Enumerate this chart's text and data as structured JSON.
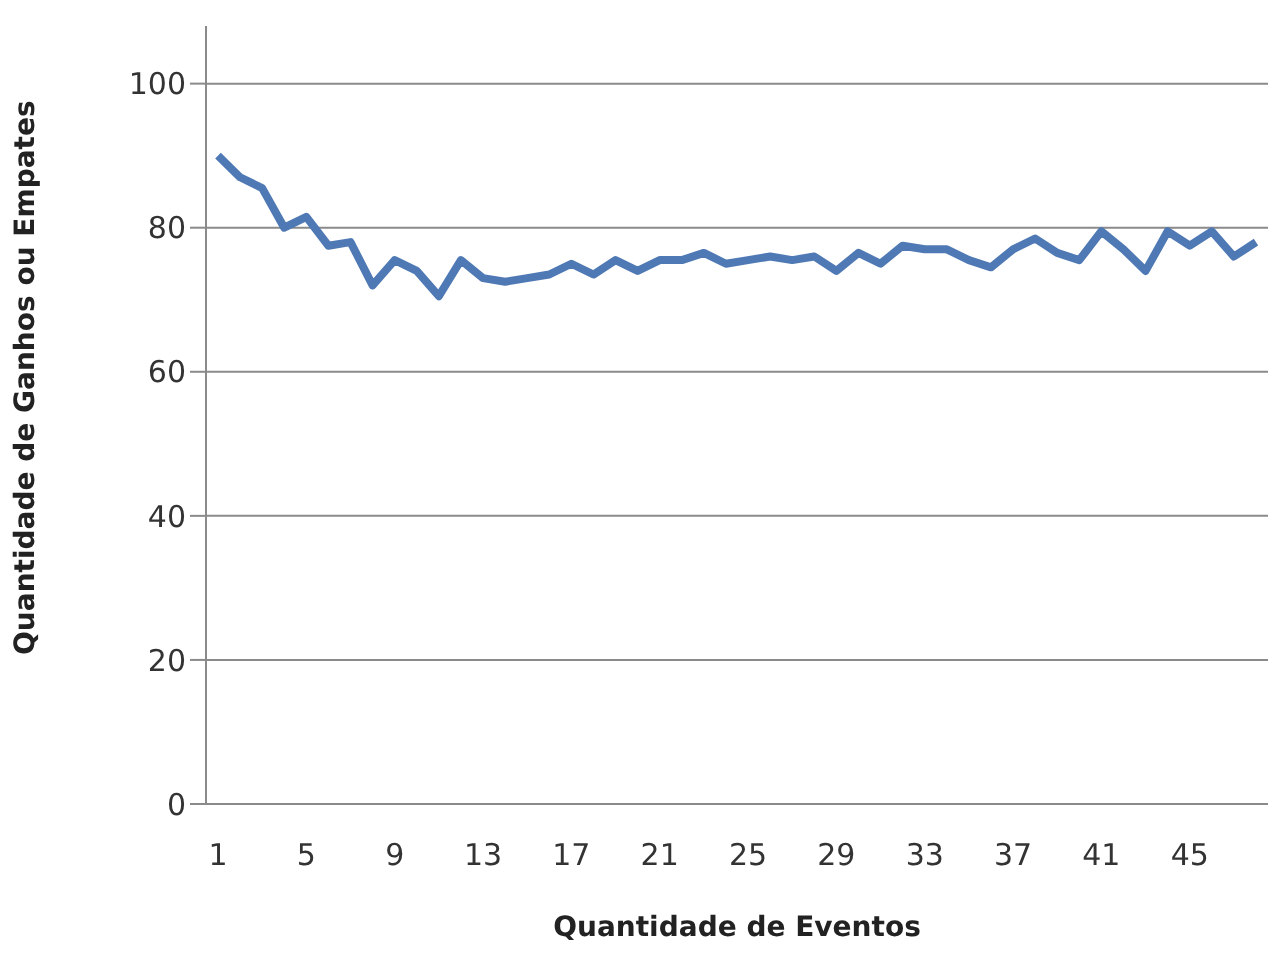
{
  "chart_data": {
    "type": "line",
    "xlabel": "Quantidade de Eventos",
    "ylabel": "Quantidade de Ganhos ou Empates",
    "categories": [
      "1",
      null,
      null,
      null,
      "5",
      null,
      null,
      null,
      "9",
      null,
      null,
      null,
      "13",
      null,
      null,
      null,
      "17",
      null,
      null,
      null,
      "21",
      null,
      null,
      null,
      "25",
      null,
      null,
      null,
      "29",
      null,
      null,
      null,
      "33",
      null,
      null,
      null,
      "37",
      null,
      null,
      null,
      "41",
      null,
      null,
      null,
      "45",
      null,
      null,
      null
    ],
    "series": [
      {
        "color": "#4f79b4",
        "values": [
          90,
          87,
          85.5,
          80,
          81.5,
          77.5,
          78,
          72,
          75.5,
          74,
          70.5,
          75.5,
          73,
          72.5,
          73,
          73.5,
          75,
          73.5,
          75.5,
          74,
          75.5,
          75.5,
          76.5,
          75,
          75.5,
          76,
          75.5,
          76,
          74,
          76.5,
          75,
          77.5,
          77,
          77,
          75.5,
          74.5,
          77,
          78.5,
          76.5,
          75.5,
          79.5,
          77,
          74,
          79.5,
          77.5,
          79.5,
          76,
          78
        ]
      }
    ],
    "ylim": [
      0,
      108
    ],
    "yticks": [
      0,
      20,
      40,
      60,
      80,
      100
    ],
    "grid": "y",
    "legend": false,
    "marker": "none",
    "line_style": "solid"
  }
}
